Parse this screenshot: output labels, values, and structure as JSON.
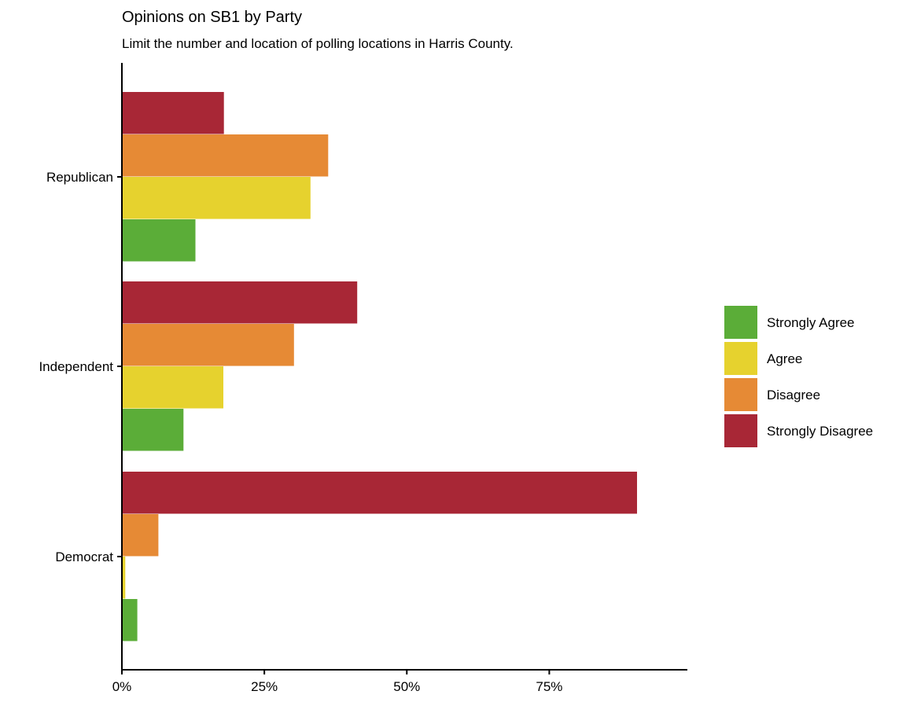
{
  "chart_data": {
    "type": "bar",
    "orientation": "horizontal",
    "title": "Opinions on SB1 by Party",
    "subtitle": "Limit the number and location of polling locations in Harris County.",
    "xlabel": "",
    "ylabel": "",
    "categories": [
      "Republican",
      "Independent",
      "Democrat"
    ],
    "xlim": [
      0,
      100
    ],
    "x_ticks": [
      0,
      25,
      50,
      75
    ],
    "x_tick_labels": [
      "0%",
      "25%",
      "50%",
      "75%"
    ],
    "grid": false,
    "legend_position": "right",
    "series": [
      {
        "name": "Strongly Agree",
        "color": "#5BAD38",
        "values": [
          12.9,
          10.8,
          2.7
        ]
      },
      {
        "name": "Agree",
        "color": "#E6D22E",
        "values": [
          33.1,
          17.8,
          0.6
        ]
      },
      {
        "name": "Disagree",
        "color": "#E68A35",
        "values": [
          36.2,
          30.2,
          6.4
        ]
      },
      {
        "name": "Strongly Disagree",
        "color": "#A82736",
        "values": [
          17.9,
          41.3,
          90.4
        ]
      }
    ]
  }
}
